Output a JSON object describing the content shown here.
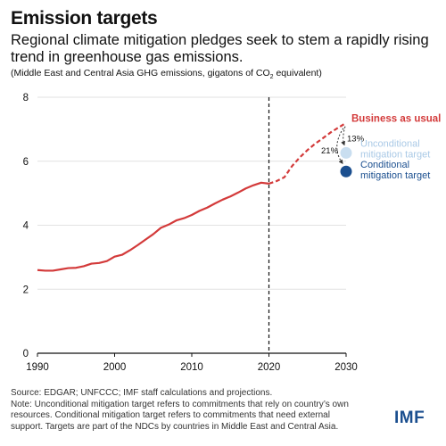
{
  "header": {
    "title": "Emission targets",
    "subtitle": "Regional climate mitigation pledges seek to stem a rapidly rising trend in greenhouse gas emissions.",
    "units_prefix": "(Middle East and Central Asia GHG emissions, gigatons of CO",
    "units_sub": "2",
    "units_suffix": " equivalent)"
  },
  "chart_data": {
    "type": "line",
    "xlim": [
      1990,
      2030
    ],
    "ylim": [
      0,
      8
    ],
    "x_ticks": [
      1990,
      2000,
      2010,
      2020,
      2030
    ],
    "y_ticks": [
      0,
      2,
      4,
      6,
      8
    ],
    "historical": {
      "x": [
        1990,
        1991,
        1992,
        1993,
        1994,
        1995,
        1996,
        1997,
        1998,
        1999,
        2000,
        2001,
        2002,
        2003,
        2004,
        2005,
        2006,
        2007,
        2008,
        2009,
        2010,
        2011,
        2012,
        2013,
        2014,
        2015,
        2016,
        2017,
        2018,
        2019,
        2020
      ],
      "y": [
        2.6,
        2.58,
        2.58,
        2.62,
        2.66,
        2.67,
        2.72,
        2.8,
        2.82,
        2.88,
        3.02,
        3.08,
        3.22,
        3.38,
        3.55,
        3.72,
        3.92,
        4.02,
        4.15,
        4.22,
        4.32,
        4.45,
        4.55,
        4.68,
        4.8,
        4.9,
        5.02,
        5.15,
        5.25,
        5.33,
        5.3
      ]
    },
    "projection": {
      "name": "Business as usual",
      "x": [
        2020,
        2021,
        2022,
        2023,
        2024,
        2025,
        2026,
        2027,
        2028,
        2029,
        2030
      ],
      "y": [
        5.3,
        5.38,
        5.5,
        5.85,
        6.12,
        6.35,
        6.55,
        6.72,
        6.9,
        7.05,
        7.2
      ]
    },
    "divider_x": 2020,
    "targets": [
      {
        "name": "Unconditional mitigation target",
        "x": 2030,
        "y": 6.26,
        "reduction": "13%",
        "color": "#c9def0"
      },
      {
        "name": "Conditional mitigation target",
        "x": 2030,
        "y": 5.68,
        "reduction": "21%",
        "color": "#1b4f8f"
      }
    ],
    "line_color": "#d33a3a"
  },
  "footer": {
    "source": "Source: EDGAR; UNFCCC; IMF staff calculations and projections.",
    "note": "Note: Unconditional mitigation target refers to commitments that rely on country’s own resources. Conditional mitigation target refers to commitments that need external support. Targets are part of the NDCs by countries in Middle East and Central Asia."
  },
  "logo": "IMF"
}
